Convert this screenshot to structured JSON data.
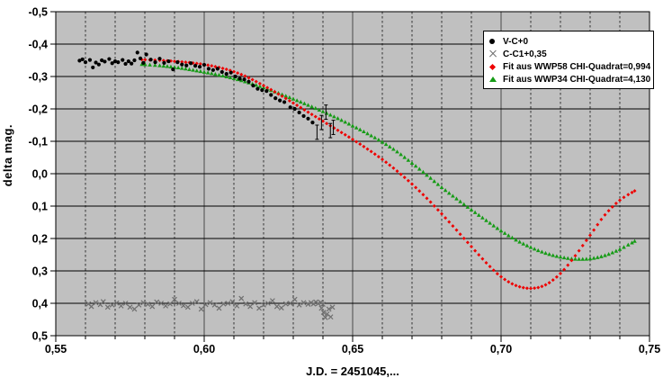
{
  "page": {
    "background": "#ffffff"
  },
  "chart_data": {
    "type": "scatter",
    "title": "",
    "xlabel": "J.D. = 2451045,...",
    "ylabel": "delta mag.",
    "xlim": [
      0.55,
      0.75
    ],
    "ylim": [
      -0.5,
      0.5
    ],
    "y_axis_inverted_display": "negative values at top",
    "plot_bg": "#c0c0c0",
    "grid": {
      "h_color": "#000000",
      "v_major_color": "#4a4a4a",
      "v_minor_color": "#333333",
      "h_step": 0.1,
      "v_major_step": 0.05,
      "v_minor_step": 0.01,
      "v_minor_style": "dashed"
    },
    "x_ticks": {
      "values": [
        0.55,
        0.6,
        0.65,
        0.7,
        0.75
      ],
      "labels": [
        "0,55",
        "0,60",
        "0,65",
        "0,70",
        "0,75"
      ]
    },
    "y_ticks": {
      "values": [
        -0.5,
        -0.4,
        -0.3,
        -0.2,
        -0.1,
        0.0,
        0.1,
        0.2,
        0.3,
        0.4,
        0.5
      ],
      "labels": [
        "-0,5",
        "-0,4",
        "-0,3",
        "-0,2",
        "-0,1",
        "0,0",
        "0,1",
        "0,2",
        "0,3",
        "0,4",
        "0,5"
      ]
    },
    "legend_position": "top-right",
    "series": [
      {
        "name": "V-C+0",
        "marker": "circle",
        "color": "#000000",
        "points": [
          [
            0.558,
            -0.349
          ],
          [
            0.559,
            -0.353
          ],
          [
            0.56,
            -0.344
          ],
          [
            0.5615,
            -0.351
          ],
          [
            0.5625,
            -0.328
          ],
          [
            0.5635,
            -0.343
          ],
          [
            0.5645,
            -0.337
          ],
          [
            0.5655,
            -0.35
          ],
          [
            0.5665,
            -0.346
          ],
          [
            0.568,
            -0.354
          ],
          [
            0.569,
            -0.341
          ],
          [
            0.57,
            -0.347
          ],
          [
            0.571,
            -0.344
          ],
          [
            0.5725,
            -0.351
          ],
          [
            0.5735,
            -0.339
          ],
          [
            0.5745,
            -0.347
          ],
          [
            0.5755,
            -0.34
          ],
          [
            0.5765,
            -0.35
          ],
          [
            0.5775,
            -0.374
          ],
          [
            0.5785,
            -0.356
          ],
          [
            0.5795,
            -0.342
          ],
          [
            0.5805,
            -0.368
          ],
          [
            0.582,
            -0.352
          ],
          [
            0.5835,
            -0.344
          ],
          [
            0.585,
            -0.355
          ],
          [
            0.5865,
            -0.342
          ],
          [
            0.588,
            -0.347
          ],
          [
            0.5895,
            -0.322
          ],
          [
            0.591,
            -0.344
          ],
          [
            0.5925,
            -0.337
          ],
          [
            0.594,
            -0.334
          ],
          [
            0.5955,
            -0.341
          ],
          [
            0.597,
            -0.333
          ],
          [
            0.5985,
            -0.33
          ],
          [
            0.6,
            -0.336
          ],
          [
            0.6015,
            -0.324
          ],
          [
            0.603,
            -0.32
          ],
          [
            0.6045,
            -0.324
          ],
          [
            0.606,
            -0.314
          ],
          [
            0.6075,
            -0.308
          ],
          [
            0.609,
            -0.312
          ],
          [
            0.6105,
            -0.3
          ],
          [
            0.612,
            -0.293
          ],
          [
            0.6135,
            -0.291
          ],
          [
            0.615,
            -0.284
          ],
          [
            0.6165,
            -0.272
          ],
          [
            0.618,
            -0.262
          ],
          [
            0.6195,
            -0.258
          ],
          [
            0.621,
            -0.255
          ],
          [
            0.6225,
            -0.243
          ],
          [
            0.624,
            -0.233
          ],
          [
            0.6255,
            -0.226
          ],
          [
            0.627,
            -0.221
          ],
          [
            0.629,
            -0.205
          ],
          [
            0.6305,
            -0.2
          ],
          [
            0.632,
            -0.189
          ],
          [
            0.6335,
            -0.178
          ],
          [
            0.635,
            -0.17
          ],
          [
            0.6365,
            -0.158
          ]
        ],
        "error_points": [
          [
            0.638,
            -0.128
          ],
          [
            0.6395,
            -0.158
          ],
          [
            0.641,
            -0.19
          ],
          [
            0.6425,
            -0.133
          ],
          [
            0.6435,
            -0.143
          ]
        ],
        "error_bar_size": 0.022
      },
      {
        "name": "C-C1+0,35",
        "marker": "x",
        "color": "#6e6e6e",
        "points": [
          [
            0.561,
            0.402
          ],
          [
            0.562,
            0.41
          ],
          [
            0.5635,
            0.398
          ],
          [
            0.565,
            0.404
          ],
          [
            0.566,
            0.395
          ],
          [
            0.5675,
            0.412
          ],
          [
            0.569,
            0.405
          ],
          [
            0.5705,
            0.399
          ],
          [
            0.572,
            0.408
          ],
          [
            0.5735,
            0.4
          ],
          [
            0.575,
            0.412
          ],
          [
            0.5765,
            0.418
          ],
          [
            0.578,
            0.405
          ],
          [
            0.5795,
            0.398
          ],
          [
            0.581,
            0.403
          ],
          [
            0.5825,
            0.41
          ],
          [
            0.584,
            0.396
          ],
          [
            0.5855,
            0.4
          ],
          [
            0.587,
            0.408
          ],
          [
            0.5885,
            0.402
          ],
          [
            0.59,
            0.388
          ],
          [
            0.5915,
            0.4
          ],
          [
            0.593,
            0.407
          ],
          [
            0.5945,
            0.412
          ],
          [
            0.596,
            0.4
          ],
          [
            0.5975,
            0.395
          ],
          [
            0.599,
            0.418
          ],
          [
            0.6005,
            0.404
          ],
          [
            0.602,
            0.398
          ],
          [
            0.6035,
            0.405
          ],
          [
            0.605,
            0.415
          ],
          [
            0.6065,
            0.402
          ],
          [
            0.608,
            0.4
          ],
          [
            0.6095,
            0.395
          ],
          [
            0.611,
            0.408
          ],
          [
            0.6125,
            0.385
          ],
          [
            0.614,
            0.402
          ],
          [
            0.6155,
            0.41
          ],
          [
            0.617,
            0.398
          ],
          [
            0.6185,
            0.415
          ],
          [
            0.62,
            0.405
          ],
          [
            0.6215,
            0.4
          ],
          [
            0.623,
            0.392
          ],
          [
            0.6245,
            0.41
          ],
          [
            0.626,
            0.414
          ],
          [
            0.6275,
            0.402
          ],
          [
            0.629,
            0.4
          ],
          [
            0.6305,
            0.388
          ],
          [
            0.632,
            0.405
          ],
          [
            0.6335,
            0.398
          ],
          [
            0.635,
            0.403
          ],
          [
            0.636,
            0.398
          ],
          [
            0.6368,
            0.402
          ],
          [
            0.6376,
            0.396
          ],
          [
            0.6384,
            0.401
          ],
          [
            0.6392,
            0.397
          ],
          [
            0.64,
            0.403
          ],
          [
            0.6395,
            0.415
          ],
          [
            0.6402,
            0.428
          ],
          [
            0.6408,
            0.444
          ],
          [
            0.6414,
            0.433
          ],
          [
            0.642,
            0.418
          ],
          [
            0.6426,
            0.442
          ],
          [
            0.6432,
            0.412
          ]
        ]
      },
      {
        "name": "Fit aus WWP58 CHI-Quadrat=0,994",
        "marker": "diamond",
        "color": "#ee0000",
        "fit_curve": true,
        "points": [
          [
            0.579,
            -0.352
          ],
          [
            0.585,
            -0.35
          ],
          [
            0.59,
            -0.347
          ],
          [
            0.595,
            -0.343
          ],
          [
            0.6,
            -0.337
          ],
          [
            0.605,
            -0.328
          ],
          [
            0.61,
            -0.315
          ],
          [
            0.615,
            -0.296
          ],
          [
            0.62,
            -0.272
          ],
          [
            0.625,
            -0.246
          ],
          [
            0.63,
            -0.218
          ],
          [
            0.635,
            -0.19
          ],
          [
            0.64,
            -0.162
          ],
          [
            0.645,
            -0.134
          ],
          [
            0.65,
            -0.106
          ],
          [
            0.655,
            -0.076
          ],
          [
            0.66,
            -0.044
          ],
          [
            0.665,
            -0.008
          ],
          [
            0.67,
            0.032
          ],
          [
            0.675,
            0.076
          ],
          [
            0.68,
            0.124
          ],
          [
            0.685,
            0.174
          ],
          [
            0.69,
            0.225
          ],
          [
            0.695,
            0.275
          ],
          [
            0.7,
            0.318
          ],
          [
            0.705,
            0.345
          ],
          [
            0.71,
            0.354
          ],
          [
            0.715,
            0.343
          ],
          [
            0.72,
            0.308
          ],
          [
            0.725,
            0.253
          ],
          [
            0.73,
            0.19
          ],
          [
            0.735,
            0.127
          ],
          [
            0.74,
            0.082
          ],
          [
            0.745,
            0.053
          ]
        ]
      },
      {
        "name": "Fit aus WWP34 CHI-Quadrat=4,130",
        "marker": "triangle",
        "color": "#159b15",
        "fit_curve": true,
        "points": [
          [
            0.579,
            -0.338
          ],
          [
            0.585,
            -0.334
          ],
          [
            0.59,
            -0.329
          ],
          [
            0.595,
            -0.322
          ],
          [
            0.6,
            -0.314
          ],
          [
            0.605,
            -0.305
          ],
          [
            0.61,
            -0.294
          ],
          [
            0.615,
            -0.281
          ],
          [
            0.62,
            -0.266
          ],
          [
            0.625,
            -0.249
          ],
          [
            0.63,
            -0.231
          ],
          [
            0.635,
            -0.212
          ],
          [
            0.64,
            -0.192
          ],
          [
            0.645,
            -0.171
          ],
          [
            0.65,
            -0.148
          ],
          [
            0.655,
            -0.124
          ],
          [
            0.66,
            -0.098
          ],
          [
            0.665,
            -0.068
          ],
          [
            0.67,
            -0.033
          ],
          [
            0.675,
            0.004
          ],
          [
            0.68,
            0.042
          ],
          [
            0.685,
            0.077
          ],
          [
            0.69,
            0.111
          ],
          [
            0.695,
            0.144
          ],
          [
            0.7,
            0.176
          ],
          [
            0.705,
            0.204
          ],
          [
            0.71,
            0.227
          ],
          [
            0.715,
            0.245
          ],
          [
            0.72,
            0.257
          ],
          [
            0.725,
            0.263
          ],
          [
            0.73,
            0.262
          ],
          [
            0.735,
            0.252
          ],
          [
            0.74,
            0.233
          ],
          [
            0.745,
            0.208
          ]
        ]
      }
    ]
  }
}
